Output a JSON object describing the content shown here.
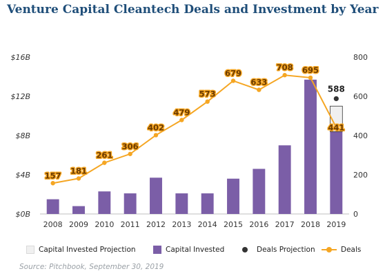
{
  "title": "Venture Capital Cleantech Deals and Investment by Year",
  "source": "Source: Pitchbook, September 30, 2019",
  "colors": {
    "capital": "#7b5ea7",
    "deals": "#f5a623",
    "projection_fill": "#f0f0f0",
    "projection_marker": "#333333"
  },
  "legend": [
    {
      "key": "capital_projection",
      "label": "Capital Invested Projection"
    },
    {
      "key": "capital",
      "label": "Capital Invested"
    },
    {
      "key": "deals_projection",
      "label": "Deals Projection"
    },
    {
      "key": "deals",
      "label": "Deals"
    }
  ],
  "chart_data": {
    "type": "bar",
    "categories": [
      "2008",
      "2009",
      "2010",
      "2011",
      "2012",
      "2013",
      "2014",
      "2015",
      "2016",
      "2017",
      "2018",
      "2019"
    ],
    "left_axis": {
      "ticks": [
        "$0B",
        "$4B",
        "$8B",
        "$12B",
        "$16B"
      ],
      "tick_values": [
        0,
        4,
        8,
        12,
        16
      ],
      "range": [
        0,
        16
      ]
    },
    "right_axis": {
      "ticks": [
        "0",
        "200",
        "400",
        "600",
        "800"
      ],
      "tick_values": [
        0,
        200,
        400,
        600,
        800
      ],
      "range": [
        0,
        800
      ]
    },
    "series": [
      {
        "name": "Capital Invested",
        "kind": "bar",
        "axis": "left",
        "values": [
          1.5,
          0.8,
          2.3,
          2.1,
          3.7,
          2.1,
          2.1,
          3.6,
          4.6,
          7.0,
          13.7,
          8.4
        ]
      },
      {
        "name": "Capital Invested Projection",
        "kind": "bar-stack",
        "axis": "left",
        "values": [
          null,
          null,
          null,
          null,
          null,
          null,
          null,
          null,
          null,
          null,
          null,
          2.6
        ]
      },
      {
        "name": "Deals",
        "kind": "line",
        "axis": "right",
        "values": [
          157,
          181,
          261,
          306,
          402,
          479,
          573,
          679,
          633,
          708,
          695,
          441
        ]
      },
      {
        "name": "Deals Projection",
        "kind": "point",
        "axis": "right",
        "values": [
          null,
          null,
          null,
          null,
          null,
          null,
          null,
          null,
          null,
          null,
          null,
          588
        ]
      }
    ],
    "grid": false,
    "legend_position": "bottom"
  }
}
